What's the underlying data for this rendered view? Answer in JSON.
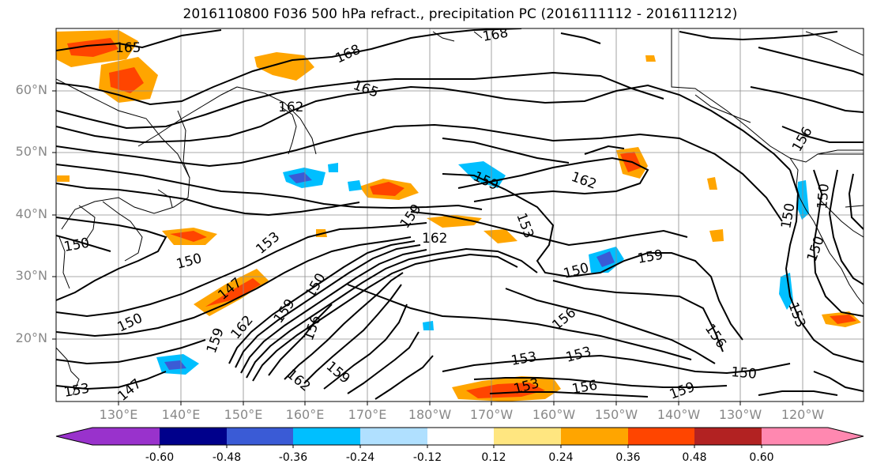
{
  "title": "2016110800 F036 500 hPa refract., precipitation PC (2016111112 - 2016111212)",
  "lat_labels": [
    "60°N",
    "50°N",
    "40°N",
    "30°N",
    "20°N"
  ],
  "lon_labels": [
    "130°E",
    "140°E",
    "150°E",
    "160°E",
    "170°E",
    "180°W",
    "170°W",
    "160°W",
    "150°W",
    "140°W",
    "130°W",
    "120°W"
  ],
  "contour_labels": [
    "165",
    "168",
    "168",
    "165",
    "162",
    "159",
    "162",
    "156",
    "150",
    "150",
    "153",
    "150",
    "159",
    "162",
    "153",
    "150",
    "159",
    "150",
    "153",
    "156",
    "150",
    "159",
    "156",
    "153",
    "153",
    "153",
    "156",
    "150",
    "153",
    "147",
    "159",
    "162",
    "147",
    "150",
    "159",
    "156",
    "150",
    "159",
    "162"
  ],
  "colorbar": {
    "ticks": [
      "-0.60",
      "-0.48",
      "-0.36",
      "-0.24",
      "-0.12",
      "0.12",
      "0.24",
      "0.36",
      "0.48",
      "0.60"
    ],
    "colors": [
      "#9932cc",
      "#00008b",
      "#3a5bd6",
      "#00bfff",
      "#b0e0ff",
      "#ffffff",
      "#ffe680",
      "#ffa500",
      "#ff4500",
      "#b22222",
      "#ff88b0"
    ]
  }
}
